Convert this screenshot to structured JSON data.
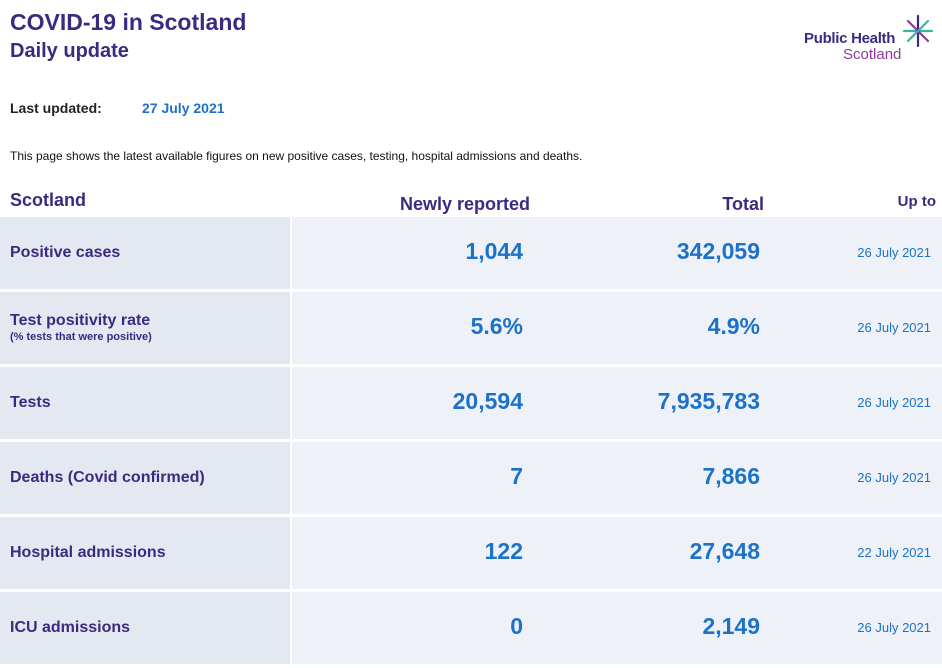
{
  "header": {
    "title": "COVID-19 in Scotland",
    "subtitle": "Daily update"
  },
  "logo": {
    "line1": "Public Health",
    "line2": "Scotland",
    "mark_icon": "phs-star-icon",
    "colors": {
      "purple": "#3b2a80",
      "magenta": "#8c3c98",
      "teal": "#2fb6a6"
    }
  },
  "last_updated": {
    "label": "Last updated:",
    "date": "27 July 2021"
  },
  "intro": "This page shows the latest available figures on new positive cases, testing, hospital admissions and deaths.",
  "table": {
    "headers": {
      "region": "Scotland",
      "new": "Newly reported",
      "total": "Total",
      "up_to": "Up to"
    },
    "rows": [
      {
        "name": "Positive cases",
        "sub": "",
        "new": "1,044",
        "total": "342,059",
        "up_to": "26 July 2021"
      },
      {
        "name": "Test positivity rate",
        "sub": "(% tests that were positive)",
        "new": "5.6%",
        "total": "4.9%",
        "up_to": "26 July 2021"
      },
      {
        "name": "Tests",
        "sub": "",
        "new": "20,594",
        "total": "7,935,783",
        "up_to": "26 July 2021"
      },
      {
        "name": "Deaths (Covid confirmed)",
        "sub": "",
        "new": "7",
        "total": "7,866",
        "up_to": "26 July 2021"
      },
      {
        "name": "Hospital admissions",
        "sub": "",
        "new": "122",
        "total": "27,648",
        "up_to": "22 July 2021"
      },
      {
        "name": "ICU admissions",
        "sub": "",
        "new": "0",
        "total": "2,149",
        "up_to": "26 July 2021"
      }
    ]
  },
  "colors": {
    "heading": "#3b2a80",
    "value": "#1b72c8",
    "label_cell": "#e3e8f1",
    "data_cell": "#eef2f8"
  }
}
